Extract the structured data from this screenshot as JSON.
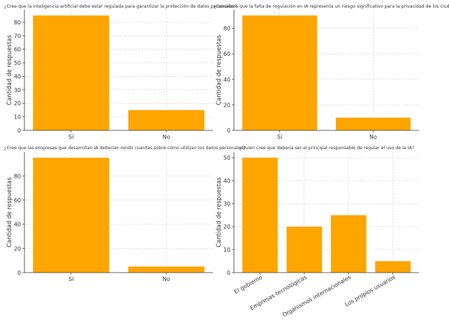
{
  "bar_color": "#ffa500",
  "chart_data": [
    {
      "type": "bar",
      "title": "¿Cree que la inteligencia artificial debe estar regulada para garantizar la protección de datos personales?",
      "xlabel": "",
      "ylabel": "Cantidad de respuestas",
      "categories": [
        "Sí",
        "No"
      ],
      "values": [
        85,
        15
      ],
      "yticks": [
        0,
        10,
        20,
        30,
        40,
        50,
        60,
        70,
        80
      ],
      "ylim": [
        0,
        89.25
      ],
      "grid": true
    },
    {
      "type": "bar",
      "title": "¿Considera que la falta de regulación en IA representa un riesgo significativo para la privacidad de los ciudadanos?",
      "xlabel": "",
      "ylabel": "Cantidad de respuestas",
      "categories": [
        "Sí",
        "No"
      ],
      "values": [
        90,
        10
      ],
      "yticks": [
        0,
        20,
        40,
        60,
        80
      ],
      "ylim": [
        0,
        94.5
      ],
      "grid": true
    },
    {
      "type": "bar",
      "title": "¿Cree que las empresas que desarrollan IA deberían rendir cuentas sobre cómo utilizan los datos personales?",
      "xlabel": "",
      "ylabel": "Cantidad de respuestas",
      "categories": [
        "Sí",
        "No"
      ],
      "values": [
        95,
        5
      ],
      "yticks": [
        0,
        20,
        40,
        60,
        80
      ],
      "ylim": [
        0,
        99.75
      ],
      "grid": true
    },
    {
      "type": "bar",
      "title": "¿Quién cree que debería ser el principal responsable de regular el uso de la IA?",
      "xlabel": "",
      "ylabel": "Cantidad de respuestas",
      "categories": [
        "El gobierno",
        "Empresas tecnológicas",
        "Organismos internacionales",
        "Los propios usuarios"
      ],
      "values": [
        50,
        20,
        25,
        5
      ],
      "yticks": [
        0,
        10,
        20,
        30,
        40,
        50
      ],
      "ylim": [
        0,
        52.5
      ],
      "grid": true,
      "rotate_labels": true
    }
  ]
}
